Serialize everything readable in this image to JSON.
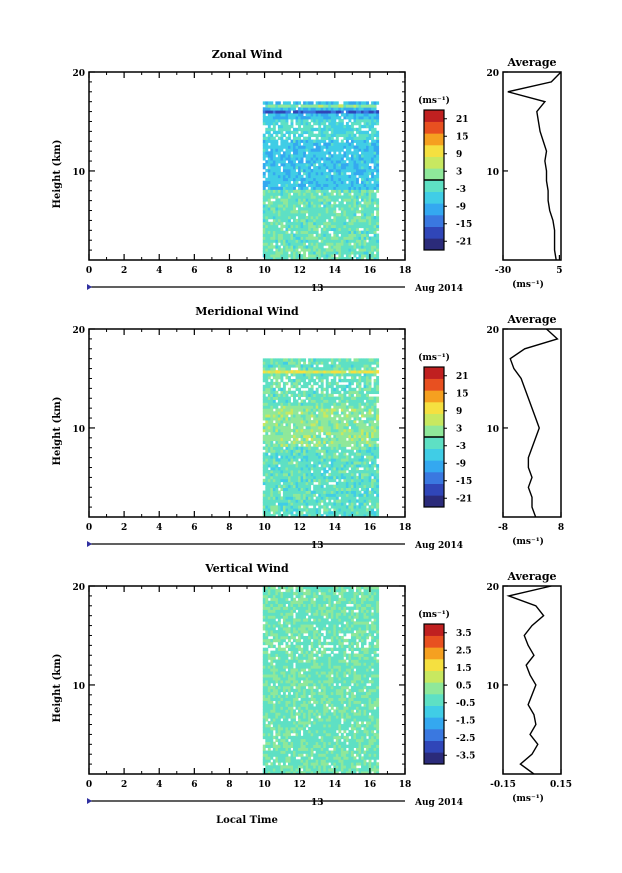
{
  "common": {
    "ylabel": "Height (km)",
    "date_day": "13",
    "date_label": "Aug 2014",
    "xlabel": "Local Time",
    "x_ticks": [
      "0",
      "2",
      "4",
      "6",
      "8",
      "10",
      "12",
      "14",
      "16",
      "18"
    ],
    "y_ticks": [
      "10",
      "20"
    ],
    "avg_title": "Average",
    "unit_label": "(ms⁻¹)"
  },
  "colormap": [
    "#2b2b7a",
    "#3046b8",
    "#3a78e0",
    "#34a8f0",
    "#40cde6",
    "#5ee0c4",
    "#8fe89a",
    "#c8e860",
    "#f5e040",
    "#f5a020",
    "#e85020",
    "#c02020"
  ],
  "chart_data": [
    {
      "type": "heatmap",
      "title": "Zonal Wind",
      "ylabel": "Height (km)",
      "xlim": [
        0,
        18
      ],
      "ylim": [
        1,
        20
      ],
      "data_time_range": [
        9.9,
        16.5
      ],
      "colorbar": {
        "min": -24,
        "max": 24,
        "ticks": [
          "21",
          "15",
          "9",
          "3",
          "-3",
          "-9",
          "-15",
          "-21"
        ]
      },
      "profile": {
        "title": "Average",
        "xlim": [
          -30,
          6
        ],
        "xticks": [
          "-30",
          "5"
        ],
        "heights": [
          1,
          2,
          3,
          4,
          5,
          6,
          7,
          8,
          9,
          10,
          11,
          12,
          13,
          14,
          15,
          16,
          17,
          18,
          19,
          20
        ],
        "values": [
          3,
          2,
          2,
          2,
          1,
          -1,
          -2,
          -2,
          -3,
          -3,
          -4,
          -3,
          -5,
          -7,
          -8,
          -9,
          -4,
          -27,
          0,
          6
        ]
      }
    },
    {
      "type": "heatmap",
      "title": "Meridional Wind",
      "ylabel": "Height (km)",
      "xlim": [
        0,
        18
      ],
      "ylim": [
        1,
        20
      ],
      "data_time_range": [
        9.9,
        16.5
      ],
      "colorbar": {
        "min": -24,
        "max": 24,
        "ticks": [
          "21",
          "15",
          "9",
          "3",
          "-3",
          "-9",
          "-15",
          "-21"
        ]
      },
      "profile": {
        "title": "Average",
        "xlim": [
          -8,
          8
        ],
        "xticks": [
          "-8",
          "8"
        ],
        "heights": [
          1,
          2,
          3,
          4,
          5,
          6,
          7,
          8,
          9,
          10,
          11,
          12,
          13,
          14,
          15,
          16,
          17,
          18,
          19,
          20
        ],
        "values": [
          1,
          0,
          0,
          -1,
          0,
          -1,
          -1,
          0,
          1,
          2,
          1,
          0,
          -1,
          -2,
          -3,
          -5,
          -6,
          -2,
          7,
          4
        ]
      }
    },
    {
      "type": "heatmap",
      "title": "Vertical Wind",
      "ylabel": "Height (km)",
      "xlim": [
        0,
        18
      ],
      "ylim": [
        1,
        20
      ],
      "data_time_range": [
        9.9,
        16.5
      ],
      "colorbar": {
        "min": -4,
        "max": 4,
        "ticks": [
          "3.5",
          "2.5",
          "1.5",
          "0.5",
          "-0.5",
          "-1.5",
          "-2.5",
          "-3.5"
        ]
      },
      "profile": {
        "title": "Average",
        "xlim": [
          -0.15,
          0.15
        ],
        "xticks": [
          "-0.15",
          "0.15"
        ],
        "heights": [
          1,
          2,
          3,
          4,
          5,
          6,
          7,
          8,
          9,
          10,
          11,
          12,
          13,
          14,
          15,
          16,
          17,
          18,
          19,
          20
        ],
        "values": [
          0.01,
          -0.06,
          0.0,
          0.03,
          -0.01,
          0.02,
          0.01,
          -0.02,
          0.0,
          0.02,
          -0.01,
          -0.03,
          0.01,
          -0.02,
          -0.04,
          0.0,
          0.06,
          0.02,
          -0.12,
          0.1
        ]
      }
    }
  ]
}
